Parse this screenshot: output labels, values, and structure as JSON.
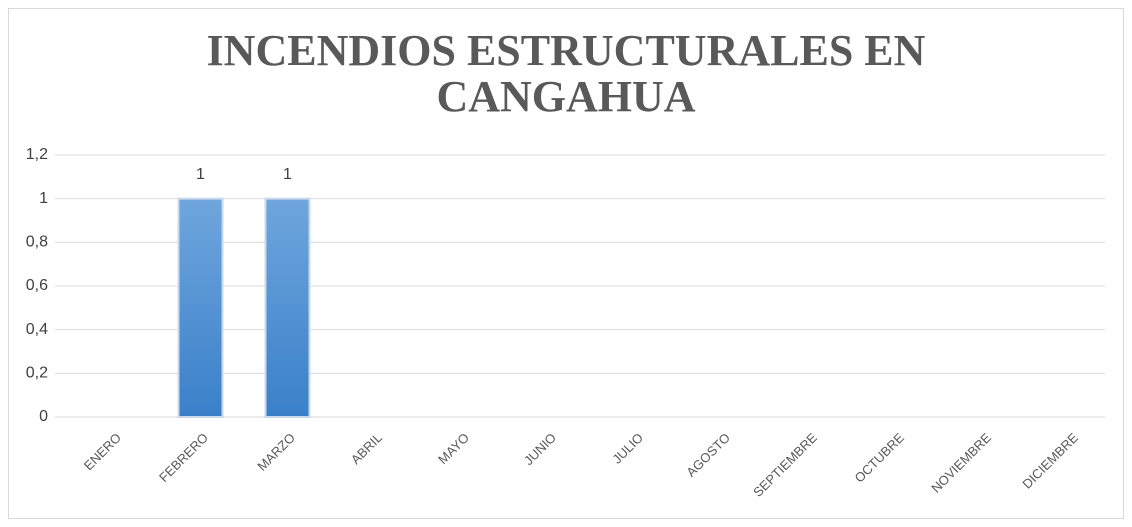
{
  "chart_data": {
    "type": "bar",
    "title": "INCENDIOS ESTRUCTURALES EN CANGAHUA",
    "categories": [
      "ENERO",
      "FEBRERO",
      "MARZO",
      "ABRIL",
      "MAYO",
      "JUNIO",
      "JULIO",
      "AGOSTO",
      "SEPTIEMBRE",
      "OCTUBRE",
      "NOVIEMBRE",
      "DICIEMBRE"
    ],
    "values": [
      null,
      1,
      1,
      null,
      null,
      null,
      null,
      null,
      null,
      null,
      null,
      null
    ],
    "color": "#4a8fd6",
    "ylim": [
      0,
      1.2
    ],
    "yticks": [
      0,
      {
        "value": 0.2,
        "label": "0,2"
      },
      {
        "value": 0.4,
        "label": "0,4"
      },
      {
        "value": 0.6,
        "label": "0,6"
      },
      {
        "value": 0.8,
        "label": "0,8"
      },
      1,
      {
        "value": 1.2,
        "label": "1,2"
      }
    ],
    "grid": true
  }
}
